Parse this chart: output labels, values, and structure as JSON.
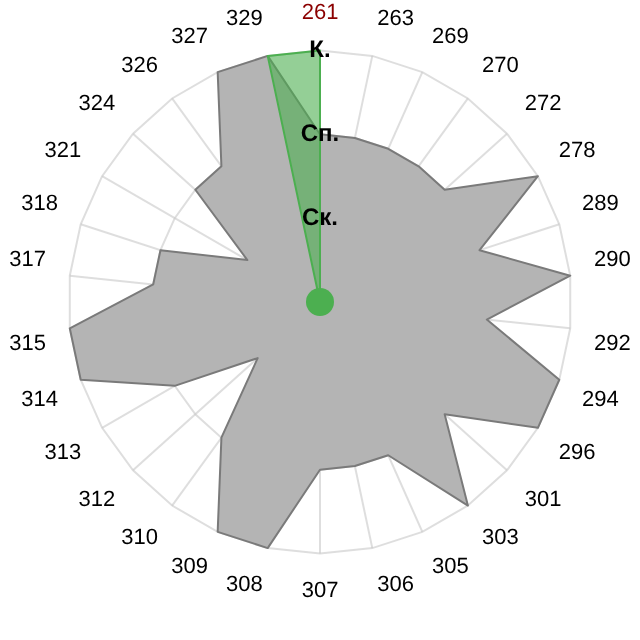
{
  "chart_data": {
    "type": "radar",
    "categories": [
      "261",
      "263",
      "269",
      "270",
      "272",
      "278",
      "289",
      "290",
      "292",
      "294",
      "296",
      "301",
      "303",
      "305",
      "306",
      "307",
      "308",
      "309",
      "310",
      "312",
      "313",
      "314",
      "315",
      "317",
      "318",
      "321",
      "324",
      "326",
      "327",
      "329"
    ],
    "series": [
      {
        "color": "#b4b4b4",
        "values": [
          2,
          2,
          2,
          2,
          2,
          3,
          2,
          3,
          2,
          3,
          3,
          2,
          3,
          2,
          2,
          2,
          3,
          3,
          2,
          1,
          2,
          3,
          3,
          2,
          2,
          1,
          2,
          2,
          3,
          3
        ]
      },
      {
        "color": "#4caf50",
        "values": [
          3,
          0,
          0,
          0,
          0,
          0,
          0,
          0,
          0,
          0,
          0,
          0,
          0,
          0,
          0,
          0,
          0,
          0,
          0,
          0,
          0,
          0,
          0,
          0,
          0,
          0,
          0,
          0,
          0,
          3
        ]
      }
    ],
    "ylim": [
      0,
      3
    ],
    "yticks": [
      {
        "value": 1,
        "label": "Ск."
      },
      {
        "value": 2,
        "label": "Сп."
      },
      {
        "value": 3,
        "label": "К."
      }
    ],
    "grid": true,
    "legend": false,
    "marker": "none"
  }
}
